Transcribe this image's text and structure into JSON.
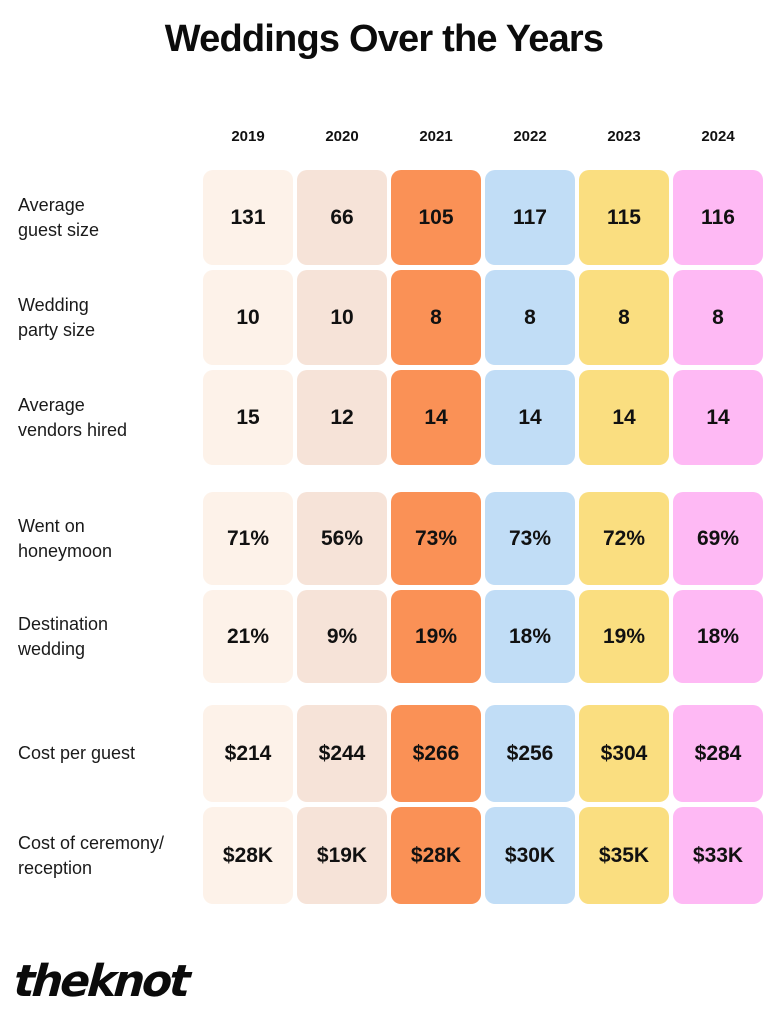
{
  "title": "Weddings Over the Years",
  "brand": {
    "logo_text": "the knot"
  },
  "chart_data": {
    "type": "table",
    "title": "Weddings Over the Years",
    "columns": [
      "2019",
      "2020",
      "2021",
      "2022",
      "2023",
      "2024"
    ],
    "column_colors": [
      "#FDF2E9",
      "#F6E3D8",
      "#FA9156",
      "#C1DDF6",
      "#FADE80",
      "#FEB9F4"
    ],
    "text_color": "#111111",
    "groups": [
      {
        "rows": [
          {
            "label": "Average\nguest size",
            "values": [
              "131",
              "66",
              "105",
              "117",
              "115",
              "116"
            ]
          },
          {
            "label": "Wedding\nparty size",
            "values": [
              "10",
              "10",
              "8",
              "8",
              "8",
              "8"
            ]
          },
          {
            "label": "Average\nvendors hired",
            "values": [
              "15",
              "12",
              "14",
              "14",
              "14",
              "14"
            ]
          }
        ]
      },
      {
        "rows": [
          {
            "label": "Went on\nhoneymoon",
            "values": [
              "71%",
              "56%",
              "73%",
              "73%",
              "72%",
              "69%"
            ]
          },
          {
            "label": "Destination\nwedding",
            "values": [
              "21%",
              "9%",
              "19%",
              "18%",
              "19%",
              "18%"
            ]
          }
        ]
      },
      {
        "rows": [
          {
            "label": "Cost per guest",
            "values": [
              "$214",
              "$244",
              "$266",
              "$256",
              "$304",
              "$284"
            ]
          },
          {
            "label": "Cost of ceremony/\nreception",
            "values": [
              "$28K",
              "$19K",
              "$28K",
              "$30K",
              "$35K",
              "$33K"
            ]
          }
        ]
      }
    ]
  }
}
